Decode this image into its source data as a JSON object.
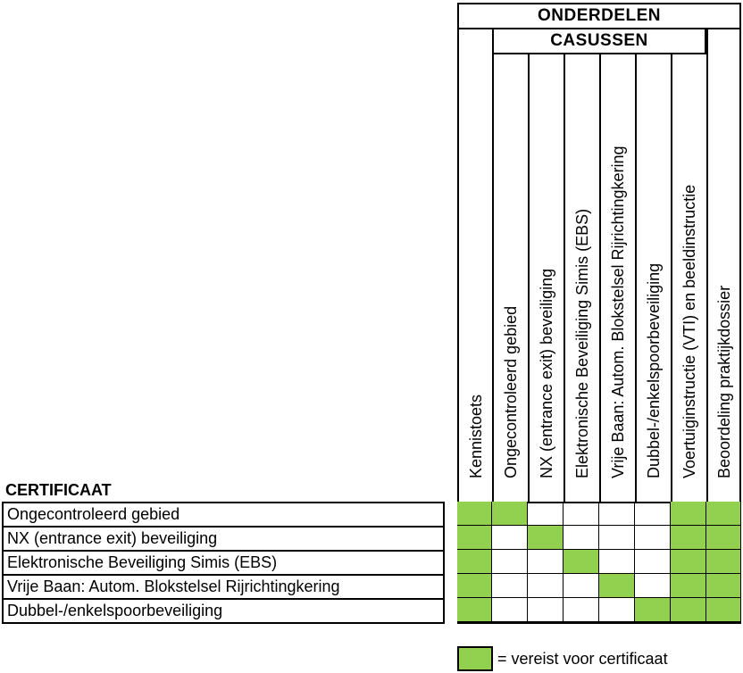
{
  "headers": {
    "onderdelen": "ONDERDELEN",
    "casussen": "CASUSSEN"
  },
  "columns": [
    "Kennistoets",
    "Ongecontroleerd gebied",
    "NX (entrance exit) beveiliging",
    "Elektronische Beveiliging Simis (EBS)",
    "Vrije Baan: Autom. Blokstelsel Rijrichtingkering",
    "Dubbel-/enkelspoorbeveiliging",
    "Voertuiginstructie (VTI) en beeldinstructie",
    "Beoordeling praktijkdossier"
  ],
  "certificaat": {
    "title": "CERTIFICAAT",
    "rows": [
      {
        "label": "Ongecontroleerd gebied",
        "required": [
          true,
          true,
          false,
          false,
          false,
          false,
          true,
          true
        ]
      },
      {
        "label": "NX (entrance exit) beveiliging",
        "required": [
          true,
          false,
          true,
          false,
          false,
          false,
          true,
          true
        ]
      },
      {
        "label": "Elektronische Beveiliging Simis (EBS)",
        "required": [
          true,
          false,
          false,
          true,
          false,
          false,
          true,
          true
        ]
      },
      {
        "label": "Vrije Baan: Autom. Blokstelsel Rijrichtingkering",
        "required": [
          true,
          false,
          false,
          false,
          true,
          false,
          true,
          true
        ]
      },
      {
        "label": "Dubbel-/enkelspoorbeveiliging",
        "required": [
          true,
          false,
          false,
          false,
          false,
          true,
          true,
          true
        ]
      }
    ]
  },
  "legend": {
    "text": "= vereist voor certificaat",
    "color": "#92d050"
  }
}
